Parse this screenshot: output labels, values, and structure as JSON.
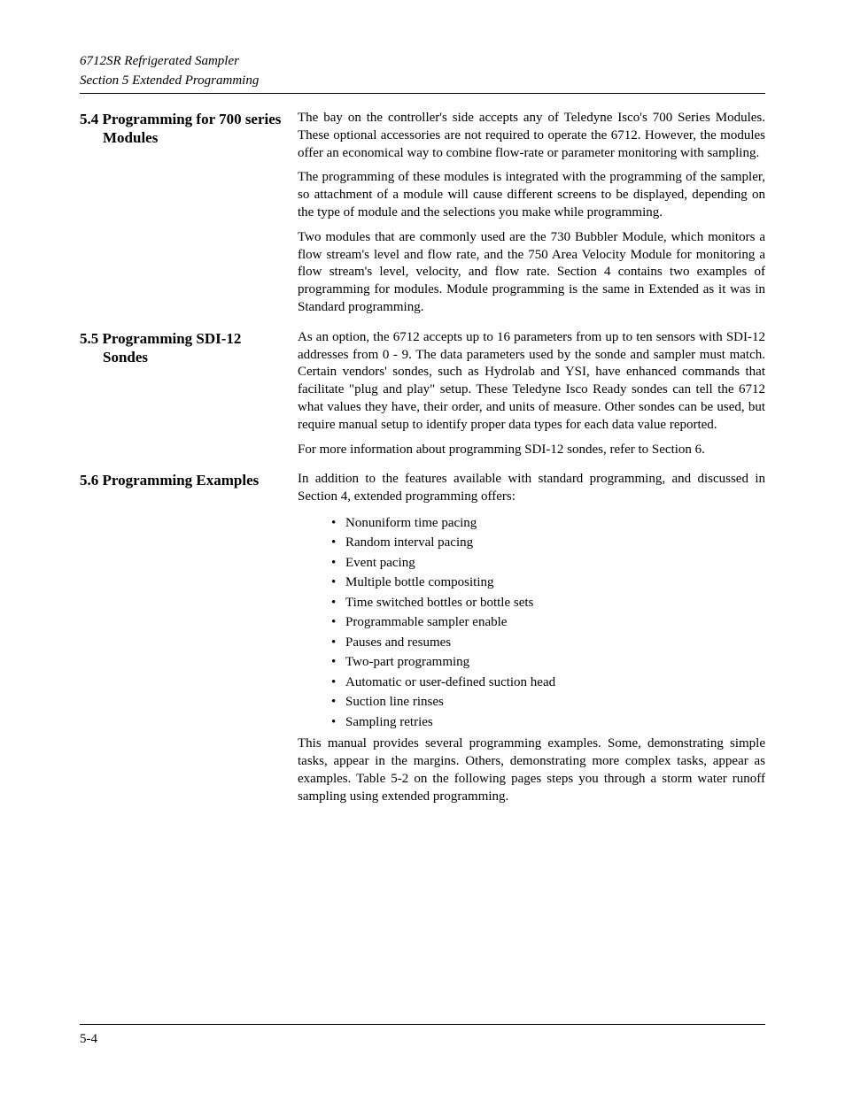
{
  "header": {
    "line1": "6712SR Refrigerated Sampler",
    "line2": "Section 5  Extended Programming"
  },
  "sections": [
    {
      "title": "5.4 Programming for 700 series Modules",
      "paragraphs": [
        "The bay on the controller's side accepts any of Teledyne Isco's 700 Series Modules. These optional accessories are not required to operate the 6712. However, the modules offer an economical way to combine flow-rate or parameter monitoring with sampling.",
        "The programming of these modules is integrated with the programming of the sampler, so attachment of a module will cause different screens to be displayed, depending on the type of module and the selections you make while programming.",
        "Two modules that are commonly used are the 730 Bubbler Module, which monitors a flow stream's level and flow rate, and the 750 Area Velocity Module for monitoring a flow stream's level, velocity, and flow rate. Section 4 contains two examples of programming for modules. Module programming is the same in Extended as it was in Standard programming."
      ]
    },
    {
      "title": "5.5 Programming SDI-12 Sondes",
      "paragraphs": [
        "As an option, the 6712 accepts up to 16 parameters from up to ten sensors with SDI-12 addresses from 0 - 9. The data parameters used by the sonde and sampler must match. Certain vendors' sondes, such as Hydrolab and YSI, have enhanced commands that facilitate \"plug and play\" setup. These Teledyne Isco Ready sondes can tell the 6712 what values they have, their order, and units of measure. Other sondes can be used, but require manual setup to identify proper data types for each data value reported.",
        "For more information about programming SDI-12 sondes, refer to Section 6."
      ]
    },
    {
      "title": "5.6 Programming Examples",
      "intro": "In addition to the features available with standard programming, and discussed in Section 4, extended programming offers:",
      "bullets": [
        "Nonuniform time pacing",
        "Random interval pacing",
        "Event pacing",
        "Multiple bottle compositing",
        "Time switched bottles or bottle sets",
        "Programmable sampler enable",
        "Pauses and resumes",
        "Two-part programming",
        "Automatic or user-defined suction head",
        "Suction line rinses",
        "Sampling retries"
      ],
      "closing": "This manual provides several programming examples. Some, demonstrating simple tasks, appear in the margins. Others, demonstrating more complex tasks, appear as examples. Table 5-2 on the following pages steps you through a storm water runoff sampling using extended programming."
    }
  ],
  "footer": {
    "page": "5-4"
  }
}
